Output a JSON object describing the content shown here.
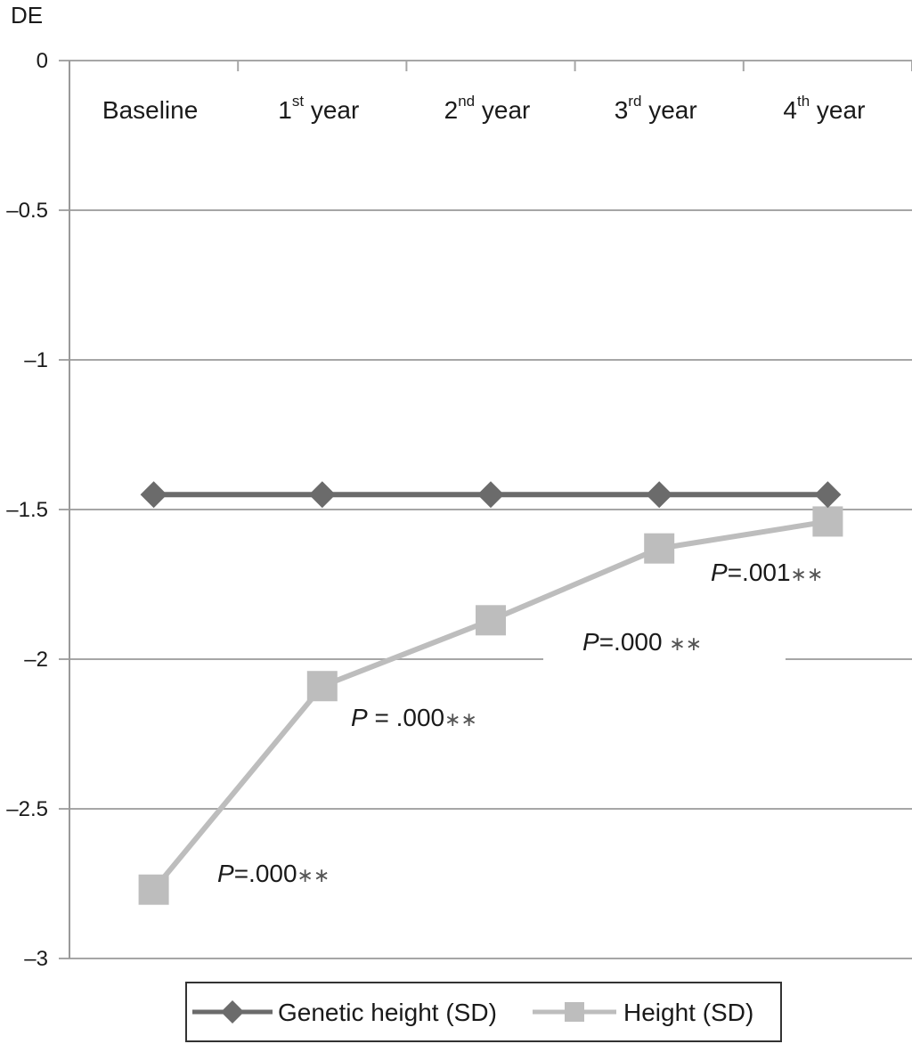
{
  "chart_data": {
    "type": "line",
    "ylabel": "DE",
    "ylim": [
      -3,
      0
    ],
    "yticks": [
      {
        "value": 0,
        "label": "0"
      },
      {
        "value": -0.5,
        "label": "–0.5"
      },
      {
        "value": -1,
        "label": "–1"
      },
      {
        "value": -1.5,
        "label": "–1.5"
      },
      {
        "value": -2,
        "label": "–2"
      },
      {
        "value": -2.5,
        "label": "–2.5"
      },
      {
        "value": -3,
        "label": "–3"
      }
    ],
    "grid": true,
    "categories": [
      {
        "base": "Baseline",
        "sup": "",
        "rest": ""
      },
      {
        "base": "1",
        "sup": "st",
        "rest": " year"
      },
      {
        "base": "2",
        "sup": "nd",
        "rest": " year"
      },
      {
        "base": "3",
        "sup": "rd",
        "rest": " year"
      },
      {
        "base": "4",
        "sup": "th",
        "rest": " year"
      }
    ],
    "series": [
      {
        "name": "Genetic height (SD)",
        "marker": "diamond",
        "color": "#6b6b6b",
        "values": [
          -1.45,
          -1.45,
          -1.45,
          -1.45,
          -1.45
        ]
      },
      {
        "name": "Height (SD)",
        "marker": "square",
        "color": "#bdbdbd",
        "values": [
          -2.77,
          -2.09,
          -1.87,
          -1.63,
          -1.54
        ]
      }
    ],
    "annotations": [
      {
        "italic": "P",
        "text": "=.000",
        "stars": "∗∗",
        "near": "Baseline"
      },
      {
        "italic": "P",
        "text": " = .000",
        "stars": "∗∗",
        "near": "1st year"
      },
      {
        "italic": "P",
        "text": "=.000 ",
        "stars": "∗∗",
        "near": "3rd year"
      },
      {
        "italic": "P",
        "text": "=.001",
        "stars": "∗∗",
        "near": "4th year"
      }
    ],
    "legend": {
      "placement": "bottom"
    }
  }
}
